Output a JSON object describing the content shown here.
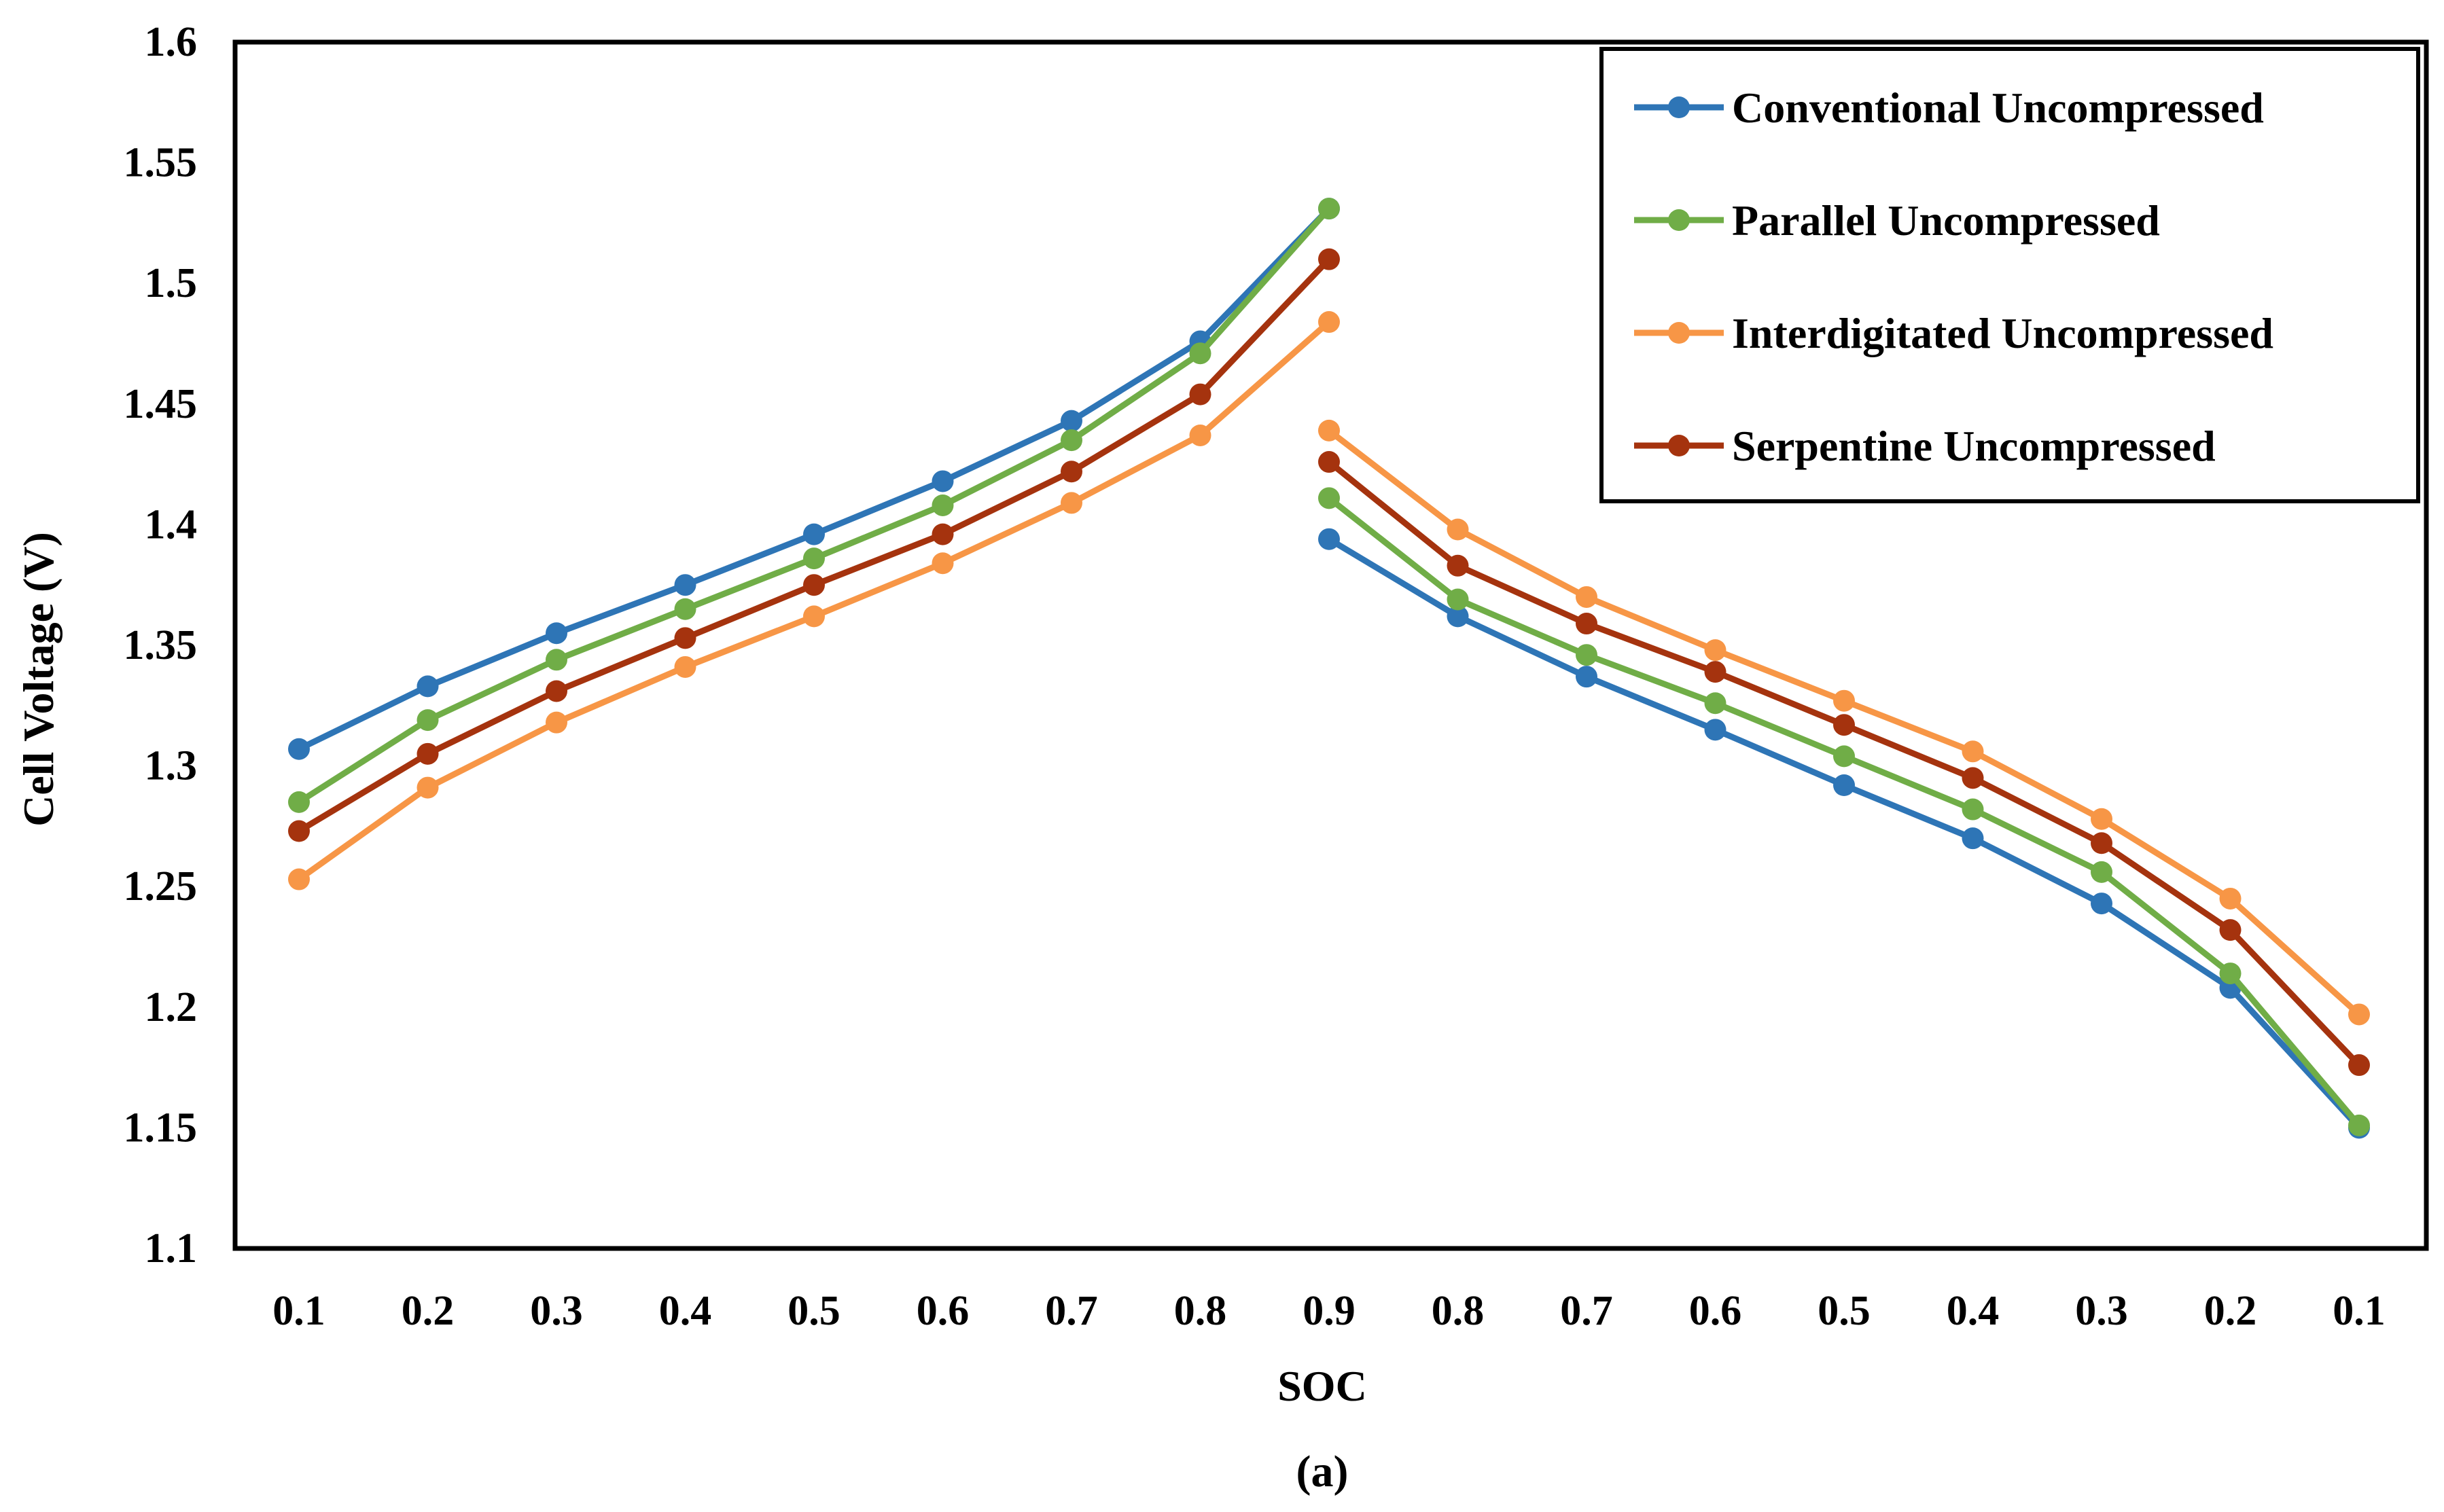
{
  "chart_data": {
    "type": "line",
    "title": "",
    "xlabel": "SOC",
    "ylabel": "Cell Voltage (V)",
    "caption": "(a)",
    "ylim": [
      1.1,
      1.6
    ],
    "y_ticks": [
      "1.1",
      "1.15",
      "1.2",
      "1.25",
      "1.3",
      "1.35",
      "1.4",
      "1.45",
      "1.5",
      "1.55",
      "1.6"
    ],
    "categories": [
      "0.1",
      "0.2",
      "0.3",
      "0.4",
      "0.5",
      "0.6",
      "0.7",
      "0.8",
      "0.9",
      "0.8",
      "0.7",
      "0.6",
      "0.5",
      "0.4",
      "0.3",
      "0.2",
      "0.1"
    ],
    "segments": [
      [
        0,
        8
      ],
      [
        8,
        16
      ]
    ],
    "grid": false,
    "legend_position": "top-right",
    "series": [
      {
        "name": "Conventional Uncompressed",
        "color": "#2E75B6",
        "charge": [
          1.307,
          1.333,
          1.355,
          1.375,
          1.396,
          1.418,
          1.443,
          1.476,
          1.531
        ],
        "discharge": [
          1.394,
          1.362,
          1.337,
          1.315,
          1.292,
          1.27,
          1.243,
          1.208,
          1.15
        ]
      },
      {
        "name": "Parallel Uncompressed",
        "color": "#70AD47",
        "charge": [
          1.285,
          1.319,
          1.344,
          1.365,
          1.386,
          1.408,
          1.435,
          1.471,
          1.531
        ],
        "discharge": [
          1.411,
          1.369,
          1.346,
          1.326,
          1.304,
          1.282,
          1.256,
          1.214,
          1.151
        ]
      },
      {
        "name": "Interdigitated Uncompressed",
        "color": "#F79646",
        "charge": [
          1.253,
          1.291,
          1.318,
          1.341,
          1.362,
          1.384,
          1.409,
          1.437,
          1.484
        ],
        "discharge": [
          1.439,
          1.398,
          1.37,
          1.348,
          1.327,
          1.306,
          1.278,
          1.245,
          1.197
        ]
      },
      {
        "name": "Serpentine Uncompressed",
        "color": "#A5330E",
        "charge": [
          1.273,
          1.305,
          1.331,
          1.353,
          1.375,
          1.396,
          1.422,
          1.454,
          1.51
        ],
        "discharge": [
          1.426,
          1.383,
          1.359,
          1.339,
          1.317,
          1.295,
          1.268,
          1.232,
          1.176
        ]
      }
    ]
  }
}
